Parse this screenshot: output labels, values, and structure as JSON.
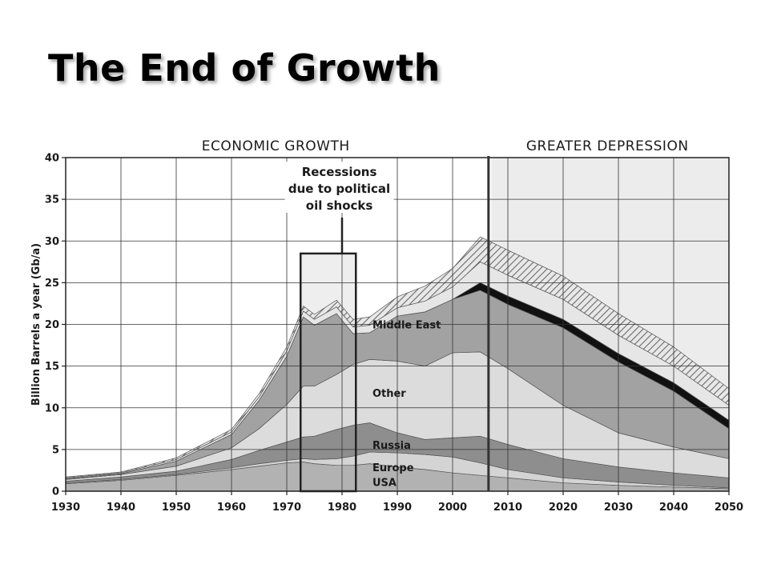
{
  "slide": {
    "title": "The End of Growth"
  },
  "chart_data": {
    "type": "area",
    "stacked": true,
    "ylabel": "Billion Barrels a year (Gb/a)",
    "xlim": [
      1930,
      2050
    ],
    "ylim": [
      0,
      40
    ],
    "x_ticks": [
      1930,
      1940,
      1950,
      1960,
      1970,
      1980,
      1990,
      2000,
      2010,
      2020,
      2030,
      2040,
      2050
    ],
    "y_ticks": [
      0,
      5,
      10,
      15,
      20,
      25,
      30,
      35,
      40
    ],
    "grid": true,
    "x": [
      1930,
      1940,
      1950,
      1960,
      1965,
      1970,
      1973,
      1975,
      1979,
      1982,
      1985,
      1990,
      1995,
      2000,
      2005,
      2010,
      2020,
      2030,
      2040,
      2050
    ],
    "series": [
      {
        "name": "USA",
        "values": [
          0.9,
          1.3,
          1.9,
          2.6,
          3.0,
          3.4,
          3.5,
          3.3,
          3.1,
          3.1,
          3.3,
          2.9,
          2.6,
          2.2,
          1.9,
          1.6,
          1.0,
          0.7,
          0.5,
          0.3
        ]
      },
      {
        "name": "Europe",
        "values": [
          0.1,
          0.1,
          0.1,
          0.2,
          0.3,
          0.3,
          0.4,
          0.5,
          0.8,
          1.1,
          1.4,
          1.7,
          1.8,
          1.9,
          1.5,
          1.0,
          0.6,
          0.4,
          0.2,
          0.1
        ]
      },
      {
        "name": "Russia",
        "values": [
          0.2,
          0.3,
          0.4,
          1.0,
          1.6,
          2.2,
          2.6,
          2.8,
          3.5,
          3.7,
          3.5,
          2.4,
          1.8,
          2.3,
          3.2,
          3.0,
          2.3,
          1.8,
          1.5,
          1.2
        ]
      },
      {
        "name": "Other",
        "values": [
          0.2,
          0.3,
          0.6,
          1.4,
          2.6,
          4.5,
          6.1,
          6.0,
          6.6,
          7.3,
          7.6,
          8.6,
          8.8,
          10.2,
          10.1,
          9.1,
          6.4,
          4.1,
          3.1,
          2.3
        ]
      },
      {
        "name": "Middle East",
        "values": [
          0.1,
          0.1,
          0.6,
          1.6,
          3.4,
          5.8,
          8.3,
          7.3,
          7.3,
          3.7,
          3.2,
          5.4,
          6.5,
          6.4,
          7.4,
          7.7,
          9.3,
          8.5,
          6.7,
          3.6
        ]
      },
      {
        "name": "",
        "values": [
          0,
          0,
          0,
          0,
          0,
          0,
          0,
          0,
          0,
          0,
          0,
          0,
          0,
          0,
          0.9,
          1.0,
          1.0,
          1.0,
          1.0,
          1.0
        ]
      },
      {
        "name": "",
        "values": [
          0.1,
          0.1,
          0.2,
          0.3,
          0.4,
          0.6,
          0.7,
          0.7,
          0.8,
          0.8,
          0.9,
          1.0,
          1.3,
          1.5,
          2.5,
          2.5,
          2.4,
          2.2,
          2.0,
          1.8
        ]
      },
      {
        "name": "",
        "values": [
          0.1,
          0.1,
          0.2,
          0.3,
          0.4,
          0.5,
          0.6,
          0.6,
          0.8,
          0.9,
          1.0,
          1.3,
          1.8,
          2.2,
          3.0,
          3.0,
          2.8,
          2.6,
          2.3,
          2.0
        ]
      }
    ],
    "series_colors": [
      "#b2b2b2",
      "#d4d4d4",
      "#8e8e8e",
      "#dcdcdc",
      "#a2a2a2",
      "#111111",
      "#e6e6e6",
      "#8a8a8a"
    ],
    "region_labels": [
      {
        "text": "ECONOMIC GROWTH",
        "x": 1968
      },
      {
        "text": "GREATER DEPRESSION",
        "x": 2028
      }
    ],
    "divider_year": 2006.5,
    "shaded_from": 2007,
    "annotation": {
      "lines": [
        "Recessions",
        "due to political",
        "oil shocks"
      ],
      "box_x": [
        1972.5,
        1982.5
      ],
      "box_top": 28.5,
      "pointer_x": 1980
    }
  }
}
